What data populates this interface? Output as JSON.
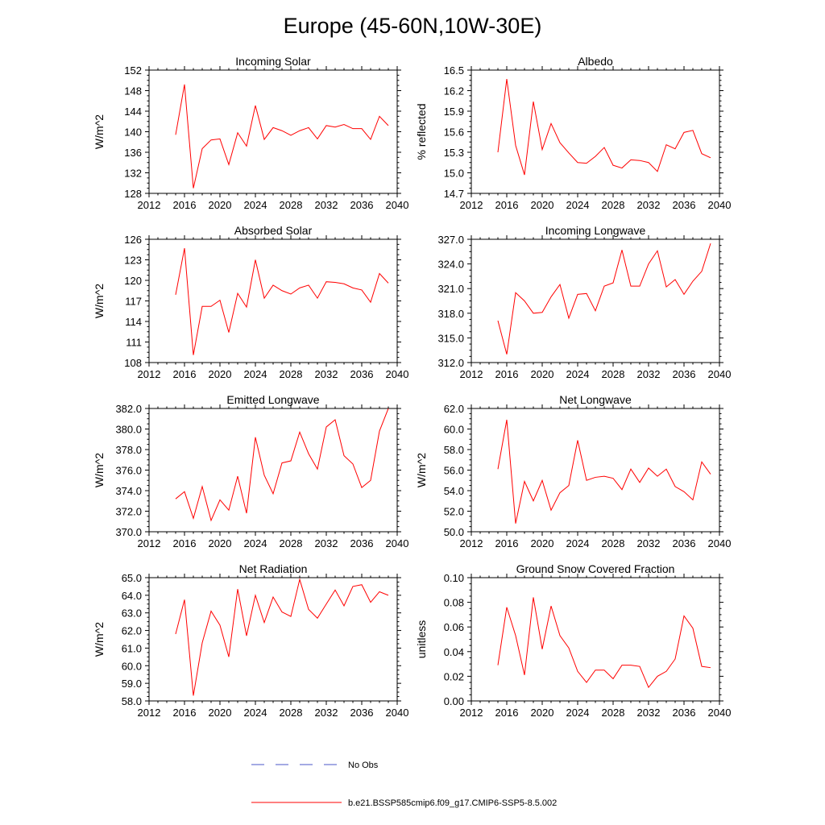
{
  "figure_title": "Europe (45-60N,10W-30E)",
  "legend": {
    "items": [
      {
        "label": "No Obs",
        "color": "#4a55c8",
        "style": "dashed"
      },
      {
        "label": "b.e21.BSSP585cmip6.f09_g17.CMIP6-SSP5-8.5.002",
        "color": "#ff0000",
        "style": "solid"
      }
    ]
  },
  "series_color": "#ff0000",
  "chart_data": [
    {
      "type": "line",
      "title": "Incoming Solar",
      "ylabel": "W/m^2",
      "xlim": [
        2012,
        2040
      ],
      "ylim": [
        128,
        152
      ],
      "yticks": [
        "128",
        "132",
        "136",
        "140",
        "144",
        "148",
        "152"
      ],
      "xticks": [
        "2012",
        "2016",
        "2020",
        "2024",
        "2028",
        "2032",
        "2036",
        "2040"
      ],
      "x": [
        2015,
        2016,
        2017,
        2018,
        2019,
        2020,
        2021,
        2022,
        2023,
        2024,
        2025,
        2026,
        2027,
        2028,
        2029,
        2030,
        2031,
        2032,
        2033,
        2034,
        2035,
        2036,
        2037,
        2038,
        2039
      ],
      "y": [
        139.4,
        149.2,
        129.0,
        136.7,
        138.4,
        138.6,
        133.6,
        139.8,
        137.2,
        145.1,
        138.5,
        140.8,
        140.2,
        139.3,
        140.2,
        140.8,
        138.6,
        141.2,
        140.9,
        141.4,
        140.6,
        140.6,
        138.5,
        143.0,
        141.2
      ]
    },
    {
      "type": "line",
      "title": "Albedo",
      "ylabel": "% reflected",
      "xlim": [
        2012,
        2040
      ],
      "ylim": [
        14.7,
        16.5
      ],
      "yticks": [
        "14.7",
        "15.0",
        "15.3",
        "15.6",
        "15.9",
        "16.2",
        "16.5"
      ],
      "xticks": [
        "2012",
        "2016",
        "2020",
        "2024",
        "2028",
        "2032",
        "2036",
        "2040"
      ],
      "x": [
        2015,
        2016,
        2017,
        2018,
        2019,
        2020,
        2021,
        2022,
        2023,
        2024,
        2025,
        2026,
        2027,
        2028,
        2029,
        2030,
        2031,
        2032,
        2033,
        2034,
        2035,
        2036,
        2037,
        2038,
        2039
      ],
      "y": [
        15.3,
        16.37,
        15.4,
        14.97,
        16.04,
        15.34,
        15.72,
        15.44,
        15.29,
        15.15,
        15.14,
        15.24,
        15.37,
        15.11,
        15.07,
        15.19,
        15.18,
        15.15,
        15.02,
        15.41,
        15.35,
        15.59,
        15.62,
        15.28,
        15.22
      ]
    },
    {
      "type": "line",
      "title": "Absorbed Solar",
      "ylabel": "W/m^2",
      "xlim": [
        2012,
        2040
      ],
      "ylim": [
        108,
        126
      ],
      "yticks": [
        "108",
        "111",
        "114",
        "117",
        "120",
        "123",
        "126"
      ],
      "xticks": [
        "2012",
        "2016",
        "2020",
        "2024",
        "2028",
        "2032",
        "2036",
        "2040"
      ],
      "x": [
        2015,
        2016,
        2017,
        2018,
        2019,
        2020,
        2021,
        2022,
        2023,
        2024,
        2025,
        2026,
        2027,
        2028,
        2029,
        2030,
        2031,
        2032,
        2033,
        2034,
        2035,
        2036,
        2037,
        2038,
        2039
      ],
      "y": [
        117.9,
        124.7,
        109.1,
        116.2,
        116.2,
        117.1,
        112.4,
        118.1,
        116.1,
        123.0,
        117.4,
        119.3,
        118.5,
        118.0,
        118.9,
        119.3,
        117.4,
        119.8,
        119.7,
        119.5,
        118.9,
        118.6,
        116.8,
        121.0,
        119.6
      ]
    },
    {
      "type": "line",
      "title": "Incoming Longwave",
      "ylabel": "",
      "xlim": [
        2012,
        2040
      ],
      "ylim": [
        312,
        327
      ],
      "yticks": [
        "312.0",
        "315.0",
        "318.0",
        "321.0",
        "324.0",
        "327.0"
      ],
      "xticks": [
        "2012",
        "2016",
        "2020",
        "2024",
        "2028",
        "2032",
        "2036",
        "2040"
      ],
      "x": [
        2015,
        2016,
        2017,
        2018,
        2019,
        2020,
        2021,
        2022,
        2023,
        2024,
        2025,
        2026,
        2027,
        2028,
        2029,
        2030,
        2031,
        2032,
        2033,
        2034,
        2035,
        2036,
        2037,
        2038,
        2039
      ],
      "y": [
        317.1,
        313.0,
        320.5,
        319.5,
        318.0,
        318.1,
        320.0,
        321.5,
        317.4,
        320.3,
        320.4,
        318.3,
        321.3,
        321.7,
        325.7,
        321.3,
        321.3,
        324.0,
        325.6,
        321.2,
        322.1,
        320.3,
        321.9,
        323.1,
        326.5
      ]
    },
    {
      "type": "line",
      "title": "Emitted Longwave",
      "ylabel": "W/m^2",
      "xlim": [
        2012,
        2040
      ],
      "ylim": [
        370,
        382
      ],
      "yticks": [
        "370.0",
        "372.0",
        "374.0",
        "376.0",
        "378.0",
        "380.0",
        "382.0"
      ],
      "xticks": [
        "2012",
        "2016",
        "2020",
        "2024",
        "2028",
        "2032",
        "2036",
        "2040"
      ],
      "x": [
        2015,
        2016,
        2017,
        2018,
        2019,
        2020,
        2021,
        2022,
        2023,
        2024,
        2025,
        2026,
        2027,
        2028,
        2029,
        2030,
        2031,
        2032,
        2033,
        2034,
        2035,
        2036,
        2037,
        2038,
        2039
      ],
      "y": [
        373.2,
        373.9,
        371.3,
        374.4,
        371.1,
        373.1,
        372.1,
        375.4,
        371.8,
        379.2,
        375.5,
        373.7,
        376.7,
        376.9,
        379.7,
        377.6,
        376.1,
        380.2,
        380.9,
        377.4,
        376.6,
        374.3,
        375.0,
        379.8,
        382.0
      ]
    },
    {
      "type": "line",
      "title": "Net Longwave",
      "ylabel": "W/m^2",
      "xlim": [
        2012,
        2040
      ],
      "ylim": [
        50,
        62
      ],
      "yticks": [
        "50.0",
        "52.0",
        "54.0",
        "56.0",
        "58.0",
        "60.0",
        "62.0"
      ],
      "xticks": [
        "2012",
        "2016",
        "2020",
        "2024",
        "2028",
        "2032",
        "2036",
        "2040"
      ],
      "x": [
        2015,
        2016,
        2017,
        2018,
        2019,
        2020,
        2021,
        2022,
        2023,
        2024,
        2025,
        2026,
        2027,
        2028,
        2029,
        2030,
        2031,
        2032,
        2033,
        2034,
        2035,
        2036,
        2037,
        2038,
        2039
      ],
      "y": [
        56.1,
        60.9,
        50.8,
        54.9,
        53.0,
        55.0,
        52.1,
        53.8,
        54.5,
        58.9,
        55.0,
        55.3,
        55.4,
        55.2,
        54.1,
        56.1,
        54.8,
        56.2,
        55.4,
        56.1,
        54.4,
        53.9,
        53.1,
        56.8,
        55.6
      ]
    },
    {
      "type": "line",
      "title": "Net Radiation",
      "ylabel": "W/m^2",
      "xlim": [
        2012,
        2040
      ],
      "ylim": [
        58,
        65
      ],
      "yticks": [
        "58.0",
        "59.0",
        "60.0",
        "61.0",
        "62.0",
        "63.0",
        "64.0",
        "65.0"
      ],
      "xticks": [
        "2012",
        "2016",
        "2020",
        "2024",
        "2028",
        "2032",
        "2036",
        "2040"
      ],
      "x": [
        2015,
        2016,
        2017,
        2018,
        2019,
        2020,
        2021,
        2022,
        2023,
        2024,
        2025,
        2026,
        2027,
        2028,
        2029,
        2030,
        2031,
        2032,
        2033,
        2034,
        2035,
        2036,
        2037,
        2038,
        2039
      ],
      "y": [
        61.8,
        63.75,
        58.3,
        61.3,
        63.1,
        62.3,
        60.5,
        64.35,
        61.7,
        64.0,
        62.45,
        63.9,
        63.05,
        62.8,
        64.9,
        63.2,
        62.7,
        63.5,
        64.3,
        63.4,
        64.5,
        64.6,
        63.6,
        64.2,
        64.0
      ]
    },
    {
      "type": "line",
      "title": "Ground Snow Covered Fraction",
      "ylabel": "unitless",
      "xlim": [
        2012,
        2040
      ],
      "ylim": [
        0,
        0.1
      ],
      "yticks": [
        "0.00",
        "0.02",
        "0.04",
        "0.06",
        "0.08",
        "0.10"
      ],
      "xticks": [
        "2012",
        "2016",
        "2020",
        "2024",
        "2028",
        "2032",
        "2036",
        "2040"
      ],
      "x": [
        2015,
        2016,
        2017,
        2018,
        2019,
        2020,
        2021,
        2022,
        2023,
        2024,
        2025,
        2026,
        2027,
        2028,
        2029,
        2030,
        2031,
        2032,
        2033,
        2034,
        2035,
        2036,
        2037,
        2038,
        2039
      ],
      "y": [
        0.029,
        0.076,
        0.053,
        0.021,
        0.084,
        0.042,
        0.077,
        0.053,
        0.043,
        0.024,
        0.015,
        0.025,
        0.025,
        0.018,
        0.029,
        0.029,
        0.028,
        0.011,
        0.02,
        0.024,
        0.034,
        0.069,
        0.059,
        0.028,
        0.027
      ]
    }
  ]
}
